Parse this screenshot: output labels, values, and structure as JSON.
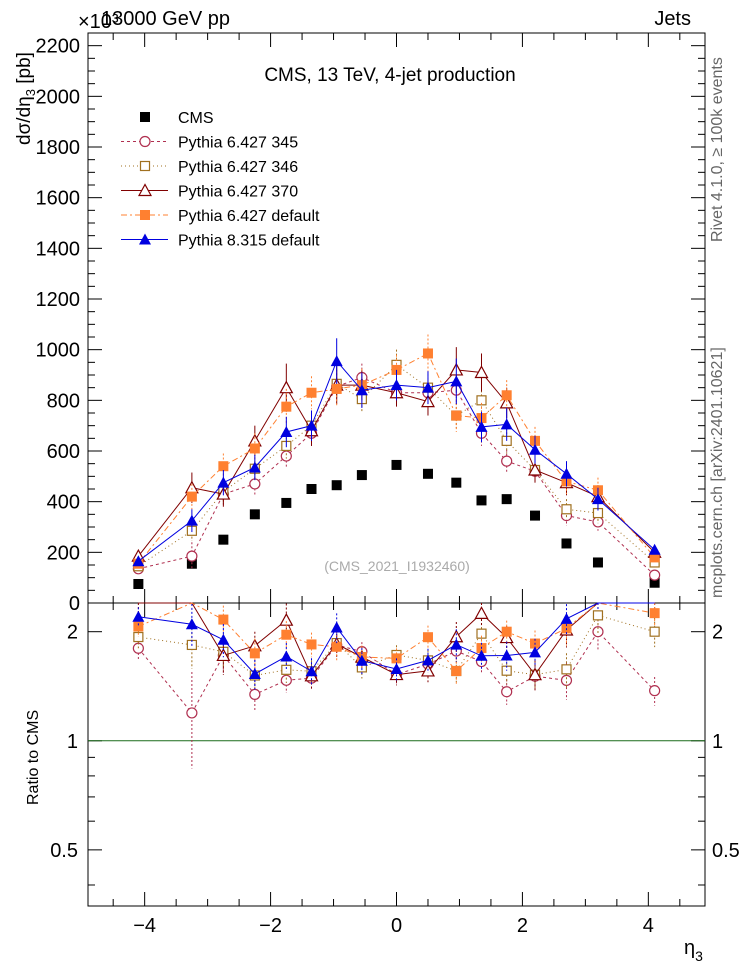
{
  "header": {
    "left": "13000 GeV pp",
    "right": "Jets",
    "exponent": "×10³"
  },
  "side_labels": {
    "top": "Rivet 4.1.0, ≥ 100k events",
    "bottom": "mcplots.cern.ch [arXiv:2401.10621]"
  },
  "chart_data": {
    "type": "scatter",
    "title": "CMS, 13 TeV, 4-jet production",
    "watermark": "(CMS_2021_I1932460)",
    "xlabel": "η3",
    "ylabel": "dσ/dη3 [pb]",
    "ratio_ylabel": "Ratio to CMS",
    "xlim": [
      -4.9,
      4.9
    ],
    "ylim": [
      0,
      2250
    ],
    "yscale_note": "×10³",
    "ratio_ylim": [
      0.35,
      2.4
    ],
    "xticks": [
      -4,
      -2,
      0,
      2,
      4
    ],
    "xtick_labels": [
      "−4",
      "−2",
      "0",
      "2",
      "4"
    ],
    "yticks": [
      0,
      200,
      400,
      600,
      800,
      1000,
      1200,
      1400,
      1600,
      1800,
      2000,
      2200
    ],
    "ytick_labels": [
      "0",
      "200",
      "400",
      "600",
      "800",
      "1000",
      "1200",
      "1400",
      "1600",
      "1800",
      "2000",
      "2200"
    ],
    "ratio_ticks": [
      0.5,
      1,
      2
    ],
    "ratio_tick_labels": [
      "0.5",
      "1",
      "2"
    ],
    "x": [
      -4.1,
      -3.25,
      -2.75,
      -2.25,
      -1.75,
      -1.35,
      -0.95,
      -0.55,
      0.0,
      0.5,
      0.95,
      1.35,
      1.75,
      2.2,
      2.7,
      3.2,
      4.1
    ],
    "series": [
      {
        "name": "CMS",
        "color": "#000000",
        "marker": "square-filled",
        "dash": "none",
        "values": [
          75,
          155,
          250,
          350,
          395,
          450,
          465,
          505,
          545,
          510,
          475,
          405,
          410,
          345,
          235,
          160,
          80
        ],
        "errors": [
          0,
          0,
          0,
          0,
          0,
          0,
          0,
          0,
          0,
          0,
          0,
          0,
          0,
          0,
          0,
          0,
          0
        ]
      },
      {
        "name": "Pythia 6.427 345",
        "color": "#b03050",
        "marker": "circle-open",
        "dash": "3,3",
        "values": [
          135,
          185,
          430,
          470,
          580,
          670,
          855,
          890,
          830,
          830,
          840,
          670,
          560,
          520,
          345,
          320,
          110
        ],
        "errors": [
          10,
          55,
          45,
          45,
          45,
          50,
          55,
          55,
          50,
          50,
          55,
          50,
          45,
          45,
          40,
          35,
          10
        ]
      },
      {
        "name": "Pythia 6.427 346",
        "color": "#a07020",
        "marker": "square-open",
        "dash": "1,3",
        "values": [
          145,
          285,
          440,
          530,
          620,
          700,
          865,
          805,
          940,
          850,
          740,
          800,
          640,
          525,
          370,
          355,
          160
        ],
        "errors": [
          10,
          40,
          45,
          45,
          50,
          50,
          55,
          55,
          60,
          55,
          50,
          55,
          50,
          45,
          40,
          40,
          15
        ]
      },
      {
        "name": "Pythia 6.427 370",
        "color": "#800000",
        "marker": "triangle-open",
        "dash": "none",
        "values": [
          185,
          455,
          430,
          640,
          850,
          680,
          860,
          860,
          830,
          795,
          920,
          910,
          790,
          525,
          475,
          420,
          200
        ],
        "errors": [
          15,
          60,
          50,
          60,
          95,
          60,
          75,
          60,
          55,
          55,
          90,
          75,
          60,
          50,
          50,
          45,
          15
        ]
      },
      {
        "name": "Pythia 6.427 default",
        "color": "#ff8030",
        "marker": "square-filled",
        "dash": "6,3,2,3",
        "values": [
          155,
          420,
          540,
          610,
          775,
          830,
          845,
          860,
          920,
          985,
          740,
          730,
          820,
          640,
          480,
          445,
          180
        ],
        "errors": [
          10,
          50,
          50,
          60,
          70,
          65,
          70,
          65,
          60,
          75,
          65,
          60,
          60,
          55,
          50,
          50,
          15
        ]
      },
      {
        "name": "Pythia 8.315 default",
        "color": "#0000e0",
        "marker": "triangle-filled",
        "dash": "none",
        "values": [
          165,
          325,
          475,
          535,
          675,
          700,
          955,
          840,
          860,
          850,
          875,
          695,
          705,
          605,
          510,
          410,
          210
        ],
        "errors": [
          10,
          45,
          50,
          50,
          60,
          60,
          90,
          70,
          60,
          65,
          90,
          60,
          65,
          55,
          50,
          45,
          15
        ]
      }
    ],
    "legend_position": "top-left"
  }
}
